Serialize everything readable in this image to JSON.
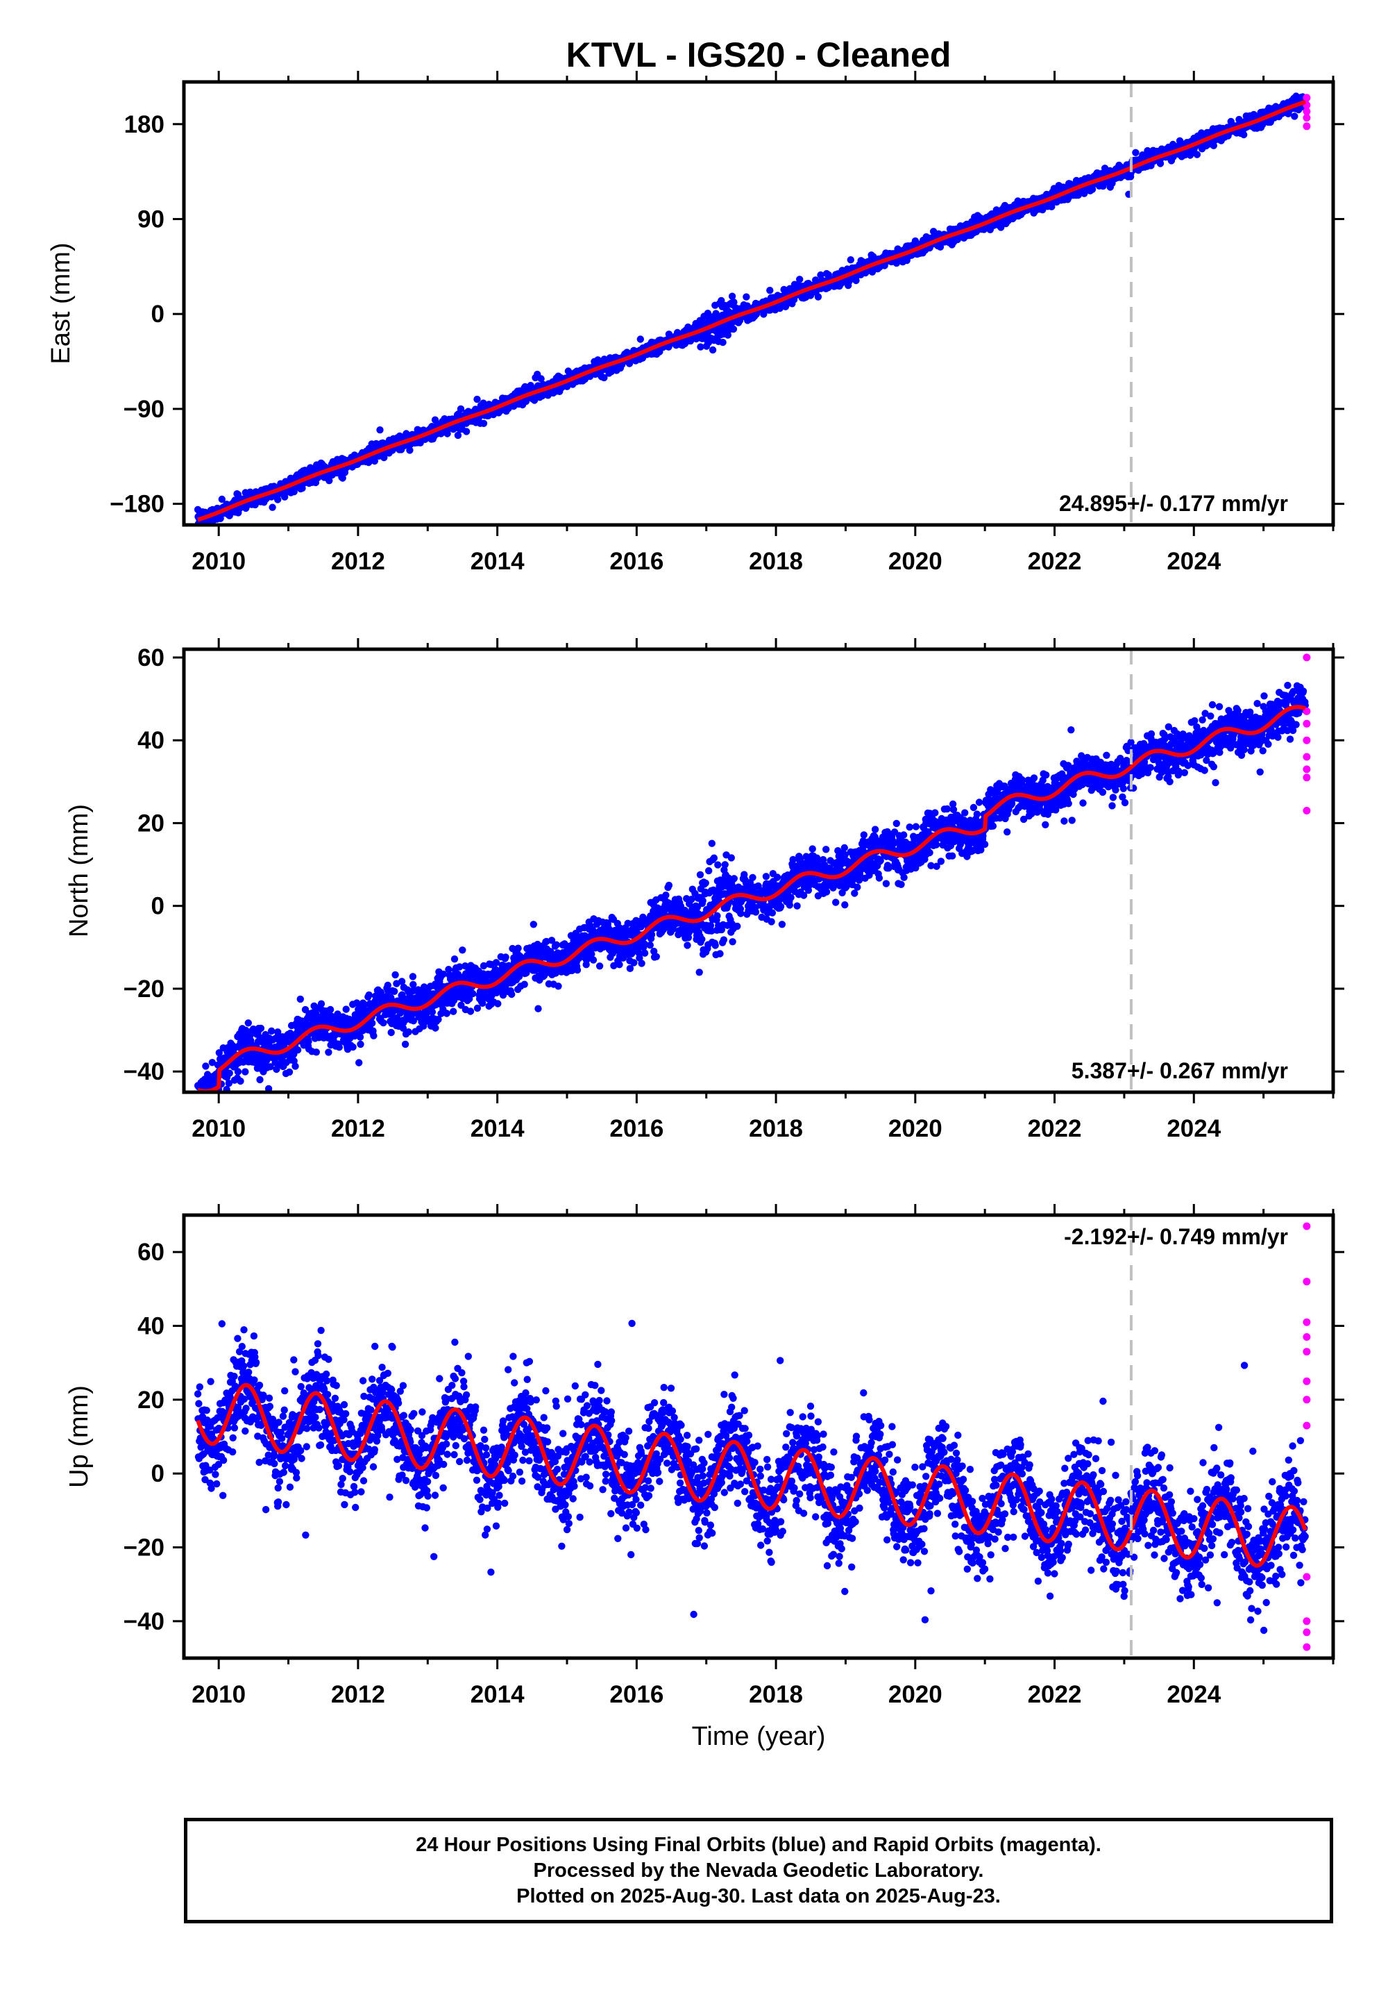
{
  "title": "KTVL  - IGS20 - Cleaned",
  "colors": {
    "final_points": "#0000ff",
    "rapid_points": "#ff00ff",
    "model_line": "#ff0000",
    "marker_line": "#c0c0c0",
    "frame": "#000000"
  },
  "chart_data": [
    {
      "type": "scatter",
      "name": "east",
      "ylabel": "East (mm)",
      "xlabel": "",
      "xlim": [
        2009.5,
        2026.0
      ],
      "ylim": [
        -200,
        220
      ],
      "xticks": [
        2010,
        2012,
        2014,
        2016,
        2018,
        2020,
        2022,
        2024
      ],
      "yticks": [
        -180,
        -90,
        0,
        90,
        180
      ],
      "ytick_labels": [
        "−180",
        "−90",
        "0",
        "90",
        "180"
      ],
      "rate_label": "24.895+/- 0.177 mm/yr",
      "rate_position": "bottom-right",
      "marker_year": 2023.1,
      "model": {
        "start_year": 2009.7,
        "start_value": -195,
        "rate": 24.9,
        "seasonal_amplitude": 0.5,
        "jumps": []
      },
      "scatter_sd": 3.5,
      "end_year": 2025.6,
      "rapid_points": [
        [
          2025.62,
          205
        ],
        [
          2025.62,
          198
        ],
        [
          2025.62,
          192
        ],
        [
          2025.62,
          186
        ],
        [
          2025.62,
          178
        ]
      ],
      "x_tick_labels_visible": true
    },
    {
      "type": "scatter",
      "name": "north",
      "ylabel": "North (mm)",
      "xlabel": "",
      "xlim": [
        2009.5,
        2026.0
      ],
      "ylim": [
        -45,
        62
      ],
      "xticks": [
        2010,
        2012,
        2014,
        2016,
        2018,
        2020,
        2022,
        2024
      ],
      "yticks": [
        -40,
        -20,
        0,
        20,
        40,
        60
      ],
      "ytick_labels": [
        "−40",
        "−20",
        "0",
        "20",
        "40",
        "60"
      ],
      "rate_label": "5.387+/- 0.267 mm/yr",
      "rate_position": "bottom-right",
      "marker_year": 2023.1,
      "model": {
        "start_year": 2009.7,
        "start_value": -44,
        "rate": 5.3,
        "seasonal_amplitude": 1.6,
        "jumps": [
          [
            2010.0,
            4
          ],
          [
            2021.0,
            3
          ]
        ]
      },
      "scatter_sd": 2.6,
      "end_year": 2025.6,
      "rapid_points": [
        [
          2025.62,
          60
        ],
        [
          2025.62,
          47
        ],
        [
          2025.62,
          44
        ],
        [
          2025.62,
          40
        ],
        [
          2025.62,
          36
        ],
        [
          2025.62,
          33
        ],
        [
          2025.62,
          31
        ],
        [
          2025.62,
          23
        ]
      ],
      "x_tick_labels_visible": true
    },
    {
      "type": "scatter",
      "name": "up",
      "ylabel": "Up (mm)",
      "xlabel": "Time (year)",
      "xlim": [
        2009.5,
        2026.0
      ],
      "ylim": [
        -50,
        70
      ],
      "xticks": [
        2010,
        2012,
        2014,
        2016,
        2018,
        2020,
        2022,
        2024
      ],
      "yticks": [
        -40,
        -20,
        0,
        20,
        40,
        60
      ],
      "ytick_labels": [
        "−40",
        "−20",
        "0",
        "20",
        "40",
        "60"
      ],
      "rate_label": "-2.192+/- 0.749 mm/yr",
      "rate_position": "top-right",
      "marker_year": 2023.1,
      "model": {
        "start_year": 2009.7,
        "start_value": 17,
        "rate": -2.2,
        "seasonal_amplitude": 8.5,
        "jumps": []
      },
      "scatter_sd": 6.5,
      "end_year": 2025.6,
      "rapid_points": [
        [
          2025.62,
          67
        ],
        [
          2025.62,
          52
        ],
        [
          2025.62,
          41
        ],
        [
          2025.62,
          37
        ],
        [
          2025.62,
          33
        ],
        [
          2025.62,
          25
        ],
        [
          2025.62,
          20
        ],
        [
          2025.62,
          13
        ],
        [
          2025.62,
          -28
        ],
        [
          2025.62,
          -40
        ],
        [
          2025.62,
          -43
        ],
        [
          2025.62,
          -47
        ]
      ],
      "x_tick_labels_visible": true
    }
  ],
  "footer": {
    "line1": "24 Hour Positions Using Final Orbits (blue) and Rapid Orbits (magenta).",
    "line2": "Processed by the Nevada Geodetic Laboratory.",
    "line3": "Plotted on 2025-Aug-30. Last data on 2025-Aug-23."
  }
}
